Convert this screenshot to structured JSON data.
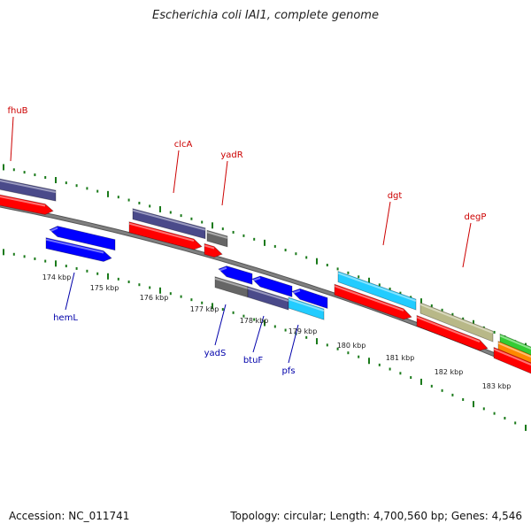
{
  "title": "Escherichia coli IAI1, complete genome",
  "footer": {
    "accession": "Accession: NC_011741",
    "summary": "Topology: circular; Length: 4,700,560 bp; Genes: 4,546"
  },
  "colors": {
    "backbone": "#808080",
    "tick": "#1a7a1a",
    "label_top": "#cc0000",
    "label_bottom": "#0000aa",
    "gene_red": "#ff0000",
    "gene_blue": "#0000ff",
    "gene_navy": "#4a4a8a",
    "gene_gray": "#666666",
    "gene_cyan": "#22ccff",
    "gene_olive": "#b8b888",
    "gene_green": "#33cc33",
    "gene_orange": "#ff8800"
  },
  "scale_ticks": [
    {
      "label": "174 kbp"
    },
    {
      "label": "175 kbp"
    },
    {
      "label": "176 kbp"
    },
    {
      "label": "177 kbp"
    },
    {
      "label": "178 kbp"
    },
    {
      "label": "179 kbp"
    },
    {
      "label": "180 kbp"
    },
    {
      "label": "181 kbp"
    },
    {
      "label": "182 kbp"
    },
    {
      "label": "183 kbp"
    }
  ],
  "gene_labels_top": [
    {
      "name": "fhuB"
    },
    {
      "name": "clcA"
    },
    {
      "name": "yadR"
    },
    {
      "name": "dgt"
    },
    {
      "name": "degP"
    }
  ],
  "gene_labels_bottom": [
    {
      "name": "hemL"
    },
    {
      "name": "yadS"
    },
    {
      "name": "btuF"
    },
    {
      "name": "pfs"
    }
  ]
}
